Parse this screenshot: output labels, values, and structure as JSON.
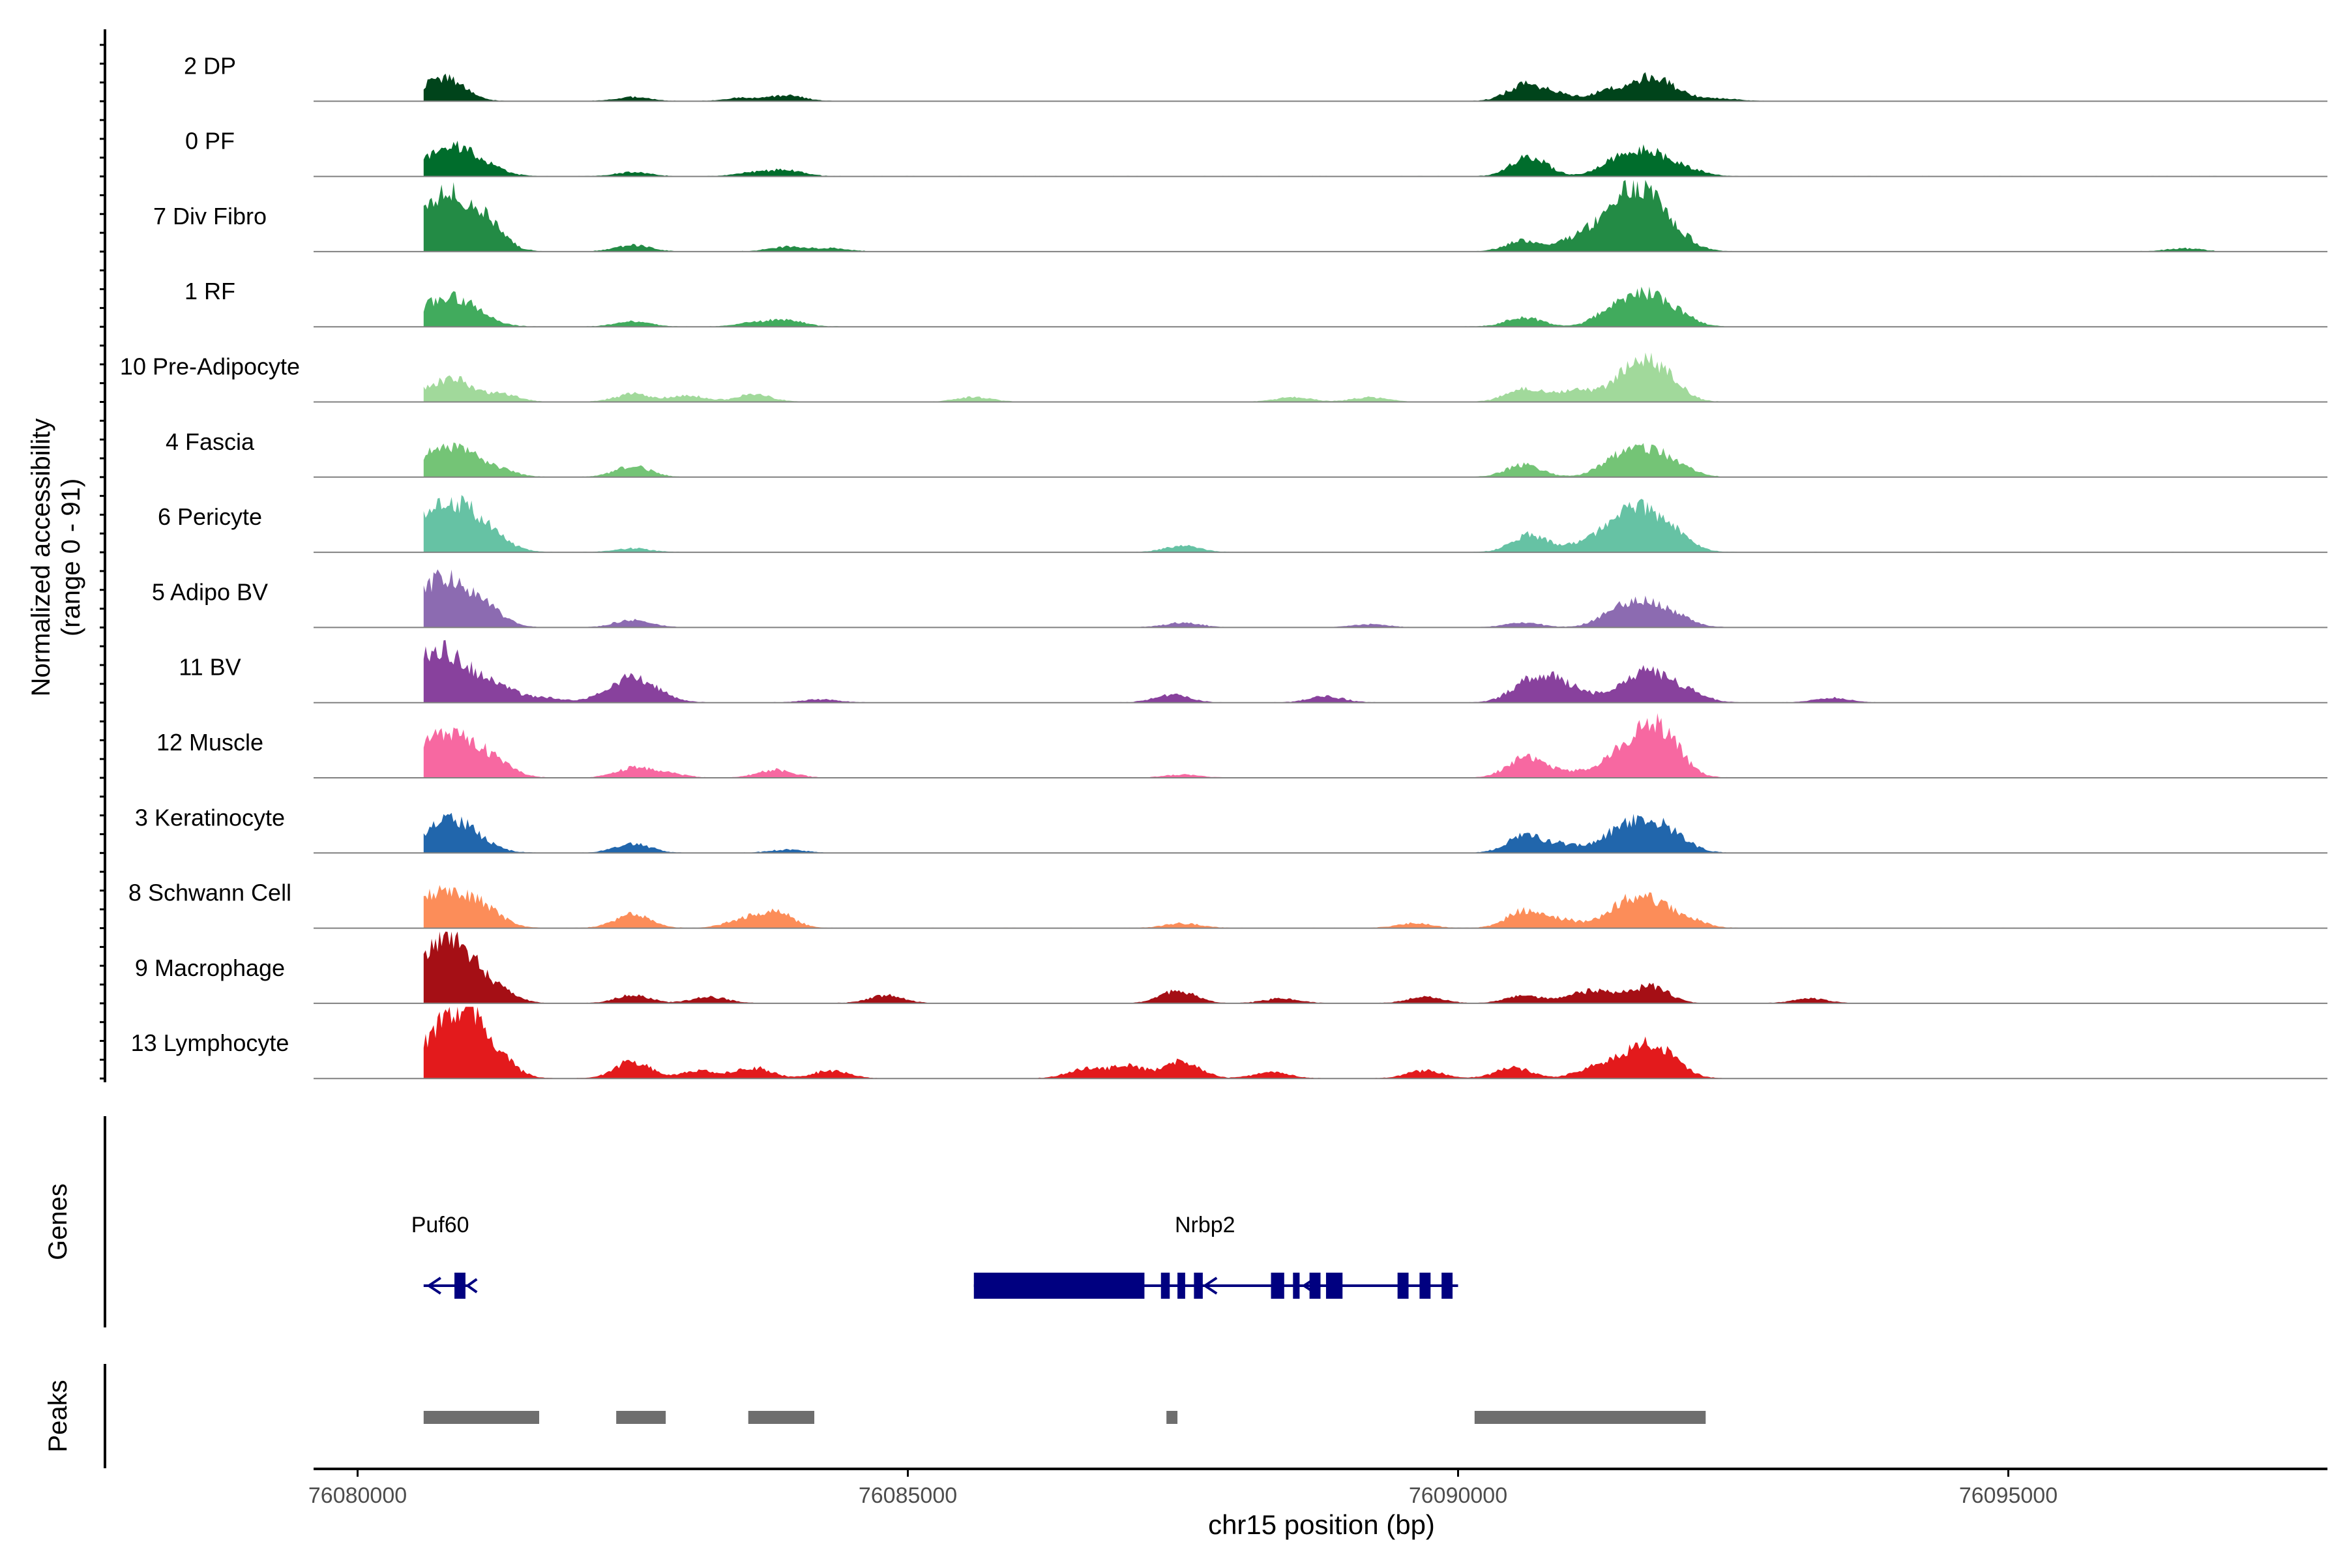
{
  "chart_data": {
    "type": "area",
    "x_axis": {
      "label": "chr15 position (bp)",
      "range": [
        76079600,
        76097900
      ],
      "ticks": [
        {
          "value": 76080000,
          "label": "76080000"
        },
        {
          "value": 76085000,
          "label": "76085000"
        },
        {
          "value": 76090000,
          "label": "76090000"
        },
        {
          "value": 76095000,
          "label": "76095000"
        }
      ]
    },
    "y_axis": {
      "label_line1": "Normalized accessibility",
      "label_line2": "(range 0 - 91)",
      "range": [
        0,
        91
      ]
    },
    "tracks": [
      {
        "name": "2 DP",
        "color": "#00441b",
        "peaks": [
          [
            76080850,
            22
          ],
          [
            76080650,
            14
          ],
          [
            76082500,
            5
          ],
          [
            76083900,
            7
          ],
          [
            76083500,
            4
          ],
          [
            76090600,
            20
          ],
          [
            76090900,
            9
          ],
          [
            76091750,
            28
          ],
          [
            76091400,
            15
          ],
          [
            76092000,
            8
          ],
          [
            76092400,
            3
          ]
        ]
      },
      {
        "name": "0 PF",
        "color": "#006d2c",
        "peaks": [
          [
            76080900,
            32
          ],
          [
            76080700,
            12
          ],
          [
            76081200,
            5
          ],
          [
            76082500,
            5
          ],
          [
            76083900,
            7
          ],
          [
            76083600,
            5
          ],
          [
            76090650,
            26
          ],
          [
            76091700,
            32
          ],
          [
            76091400,
            10
          ],
          [
            76092100,
            6
          ]
        ]
      },
      {
        "name": "7 Div Fibro",
        "color": "#238b45",
        "peaks": [
          [
            76080900,
            62
          ],
          [
            76080650,
            28
          ],
          [
            76081200,
            18
          ],
          [
            76082500,
            8
          ],
          [
            76083900,
            6
          ],
          [
            76084300,
            4
          ],
          [
            76090600,
            14
          ],
          [
            76091500,
            42
          ],
          [
            76091700,
            50
          ],
          [
            76091100,
            16
          ],
          [
            76092000,
            10
          ],
          [
            76096600,
            4
          ]
        ]
      },
      {
        "name": "1 RF",
        "color": "#41ab5d",
        "peaks": [
          [
            76080900,
            34
          ],
          [
            76080650,
            12
          ],
          [
            76082500,
            7
          ],
          [
            76083900,
            8
          ],
          [
            76083600,
            5
          ],
          [
            76090600,
            12
          ],
          [
            76091700,
            40
          ],
          [
            76091400,
            14
          ],
          [
            76092000,
            8
          ]
        ]
      },
      {
        "name": "10 Pre-Adipocyte",
        "color": "#a1d99b",
        "peaks": [
          [
            76080900,
            25
          ],
          [
            76080650,
            14
          ],
          [
            76081300,
            10
          ],
          [
            76082500,
            10
          ],
          [
            76083000,
            8
          ],
          [
            76083600,
            10
          ],
          [
            76085600,
            6
          ],
          [
            76088500,
            6
          ],
          [
            76090600,
            18
          ],
          [
            76091050,
            14
          ],
          [
            76091650,
            48
          ],
          [
            76091900,
            14
          ],
          [
            76089200,
            6
          ]
        ]
      },
      {
        "name": "4 Fascia",
        "color": "#74c476",
        "peaks": [
          [
            76080900,
            34
          ],
          [
            76080650,
            14
          ],
          [
            76081300,
            6
          ],
          [
            76082500,
            14
          ],
          [
            76090600,
            16
          ],
          [
            76091700,
            34
          ],
          [
            76091400,
            12
          ],
          [
            76092000,
            7
          ]
        ]
      },
      {
        "name": "6 Pericyte",
        "color": "#66c2a4",
        "peaks": [
          [
            76080950,
            56
          ],
          [
            76080650,
            30
          ],
          [
            76081300,
            6
          ],
          [
            76082500,
            5
          ],
          [
            76087500,
            8
          ],
          [
            76090650,
            22
          ],
          [
            76091700,
            52
          ],
          [
            76091400,
            20
          ],
          [
            76091100,
            8
          ],
          [
            76092000,
            8
          ]
        ]
      },
      {
        "name": "5 Adipo BV",
        "color": "#8c6bb1",
        "peaks": [
          [
            76080900,
            42
          ],
          [
            76080650,
            34
          ],
          [
            76081200,
            12
          ],
          [
            76082500,
            10
          ],
          [
            76087500,
            6
          ],
          [
            76089200,
            4
          ],
          [
            76090600,
            6
          ],
          [
            76091700,
            32
          ],
          [
            76091400,
            10
          ],
          [
            76092000,
            6
          ]
        ]
      },
      {
        "name": "11 BV",
        "color": "#88419d",
        "peaks": [
          [
            76080900,
            36
          ],
          [
            76080650,
            46
          ],
          [
            76081300,
            16
          ],
          [
            76081700,
            6
          ],
          [
            76082500,
            32
          ],
          [
            76084200,
            4
          ],
          [
            76087400,
            10
          ],
          [
            76088800,
            8
          ],
          [
            76090600,
            18
          ],
          [
            76090800,
            24
          ],
          [
            76091050,
            14
          ],
          [
            76091700,
            42
          ],
          [
            76092100,
            10
          ],
          [
            76093400,
            6
          ]
        ]
      },
      {
        "name": "12 Muscle",
        "color": "#f768a1",
        "peaks": [
          [
            76080950,
            48
          ],
          [
            76080650,
            30
          ],
          [
            76081300,
            10
          ],
          [
            76082500,
            12
          ],
          [
            76082800,
            6
          ],
          [
            76083800,
            10
          ],
          [
            76087500,
            4
          ],
          [
            76090600,
            24
          ],
          [
            76090900,
            8
          ],
          [
            76091300,
            10
          ],
          [
            76091700,
            58
          ],
          [
            76091900,
            22
          ]
        ]
      },
      {
        "name": "3 Keratinocyte",
        "color": "#2166ac",
        "peaks": [
          [
            76080900,
            38
          ],
          [
            76080650,
            12
          ],
          [
            76082500,
            12
          ],
          [
            76083900,
            4
          ],
          [
            76090600,
            22
          ],
          [
            76090950,
            10
          ],
          [
            76091700,
            42
          ],
          [
            76091400,
            12
          ],
          [
            76092000,
            8
          ]
        ]
      },
      {
        "name": "8 Schwann Cell",
        "color": "#fc8d59",
        "peaks": [
          [
            76080900,
            40
          ],
          [
            76080650,
            22
          ],
          [
            76081200,
            12
          ],
          [
            76082500,
            18
          ],
          [
            76083800,
            20
          ],
          [
            76083500,
            10
          ],
          [
            76087500,
            6
          ],
          [
            76089600,
            6
          ],
          [
            76090600,
            22
          ],
          [
            76090950,
            10
          ],
          [
            76091700,
            36
          ],
          [
            76091450,
            12
          ],
          [
            76092100,
            8
          ]
        ]
      },
      {
        "name": "9 Macrophage",
        "color": "#a50f15",
        "peaks": [
          [
            76080900,
            60
          ],
          [
            76080650,
            42
          ],
          [
            76081300,
            10
          ],
          [
            76082500,
            10
          ],
          [
            76083200,
            8
          ],
          [
            76084800,
            10
          ],
          [
            76087450,
            16
          ],
          [
            76088400,
            6
          ],
          [
            76089700,
            8
          ],
          [
            76090600,
            10
          ],
          [
            76091100,
            10
          ],
          [
            76091750,
            22
          ],
          [
            76091350,
            12
          ],
          [
            76093200,
            6
          ]
        ]
      },
      {
        "name": "13 Lymphocyte",
        "color": "#e31a1c",
        "peaks": [
          [
            76080950,
            88
          ],
          [
            76080650,
            20
          ],
          [
            76081300,
            12
          ],
          [
            76082500,
            22
          ],
          [
            76083100,
            10
          ],
          [
            76083600,
            14
          ],
          [
            76084300,
            10
          ],
          [
            76086600,
            12
          ],
          [
            76087000,
            16
          ],
          [
            76087500,
            22
          ],
          [
            76088300,
            8
          ],
          [
            76089700,
            10
          ],
          [
            76090500,
            14
          ],
          [
            76091200,
            10
          ],
          [
            76091650,
            40
          ],
          [
            76091900,
            16
          ]
        ]
      }
    ],
    "genes_label": "Genes",
    "genes": [
      {
        "name": "Puf60",
        "strand": "-",
        "start": 76080600,
        "end": 76081000,
        "exons": [
          [
            76080880,
            76080980
          ]
        ]
      },
      {
        "name": "Nrbp2",
        "strand": "-",
        "start": 76085600,
        "end": 76090000,
        "exons": [
          [
            76085600,
            76087150
          ],
          [
            76087300,
            76087380
          ],
          [
            76087450,
            76087520
          ],
          [
            76087600,
            76087680
          ],
          [
            76088300,
            76088420
          ],
          [
            76088500,
            76088560
          ],
          [
            76088650,
            76088750
          ],
          [
            76088800,
            76088950
          ],
          [
            76089450,
            76089550
          ],
          [
            76089650,
            76089750
          ],
          [
            76089850,
            76089950
          ]
        ]
      }
    ],
    "peaks_label": "Peaks",
    "peaks": [
      [
        76080600,
        76081650
      ],
      [
        76082350,
        76082800
      ],
      [
        76083550,
        76084150
      ],
      [
        76087350,
        76087450
      ],
      [
        76090150,
        76092250
      ]
    ]
  }
}
